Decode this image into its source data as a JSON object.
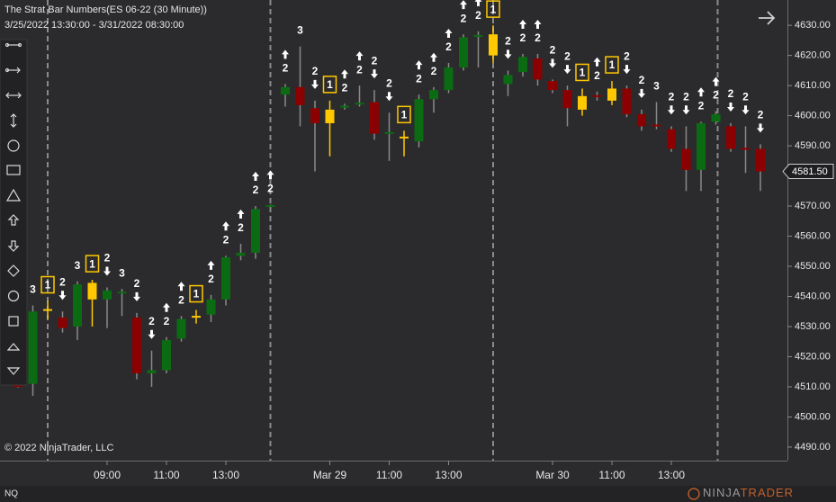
{
  "chart_data": {
    "type": "candlestick",
    "title": "The Strat Bar Numbers(ES 06-22 (30 Minute))",
    "subtitle": "3/25/2022 13:30:00 - 3/31/2022 08:30:00",
    "copyright": "© 2022 NinjaTrader, LLC",
    "instrument": "NQ",
    "brand": {
      "first": "NINJA",
      "second": "TRADER"
    },
    "categories": [
      null,
      null,
      null,
      null,
      null,
      null,
      "09:00",
      null,
      null,
      null,
      "11:00",
      null,
      null,
      null,
      "13:00",
      null,
      null,
      null,
      null,
      null,
      null,
      "Mar 29",
      null,
      null,
      null,
      "11:00",
      null,
      null,
      null,
      "13:00",
      null,
      null,
      null,
      null,
      null,
      null,
      "Mar 30",
      null,
      null,
      null,
      "11:00",
      null,
      null,
      null,
      "13:00",
      null,
      null,
      null,
      null,
      null,
      null
    ],
    "open": [
      4510.25,
      4511,
      4535,
      4533,
      4530,
      4539,
      4539,
      4541,
      4533,
      4514.5,
      4515.5,
      4526,
      4533,
      4534,
      4539,
      4553.5,
      4554.5,
      4569.5,
      4607,
      4609.5,
      4602.5,
      4597.5,
      4602.5,
      4603.5,
      4604.5,
      4594,
      4592.5,
      4591.5,
      4605.5,
      4608.5,
      4616,
      4626,
      4620,
      4610.5,
      4614.5,
      4619,
      4611.5,
      4608.5,
      4602,
      4606.5,
      4605,
      4609,
      4600.5,
      4596.75,
      4595.5,
      4589,
      4582,
      4598,
      4596.5,
      4589,
      4589
    ],
    "high": [
      4510.5,
      4537,
      4538.5,
      4535,
      4545,
      4545.5,
      4543,
      4542.5,
      4534.5,
      4522,
      4526.5,
      4533.5,
      4535.5,
      4540.5,
      4553.5,
      4557.5,
      4570,
      4570.5,
      4610.5,
      4623,
      4605,
      4605,
      4604,
      4610,
      4608.5,
      4601,
      4595,
      4607,
      4609.5,
      4617.5,
      4627,
      4628,
      4630,
      4615,
      4620.5,
      4620.5,
      4612,
      4610,
      4609,
      4608,
      4611.5,
      4610,
      4602,
      4604.5,
      4596.5,
      4596.5,
      4598,
      4601.5,
      4597.5,
      4596.5,
      4590.5
    ],
    "low": [
      4509.75,
      4507,
      4532.5,
      4528,
      4525.5,
      4530,
      4529.5,
      4533.5,
      4512.5,
      4510,
      4514.5,
      4525,
      4531,
      4531.5,
      4537,
      4552,
      4552.5,
      4569,
      4603,
      4596.5,
      4581.5,
      4586.5,
      4602,
      4603,
      4592,
      4585,
      4586.5,
      4589.5,
      4601,
      4607.5,
      4615,
      4616,
      4617.5,
      4606.5,
      4613,
      4610,
      4607.5,
      4596.5,
      4600,
      4605,
      4603.5,
      4599.5,
      4595,
      4595.5,
      4588,
      4575,
      4575,
      4597,
      4588,
      4581,
      4575
    ],
    "close": [
      4510,
      4535,
      4535.5,
      4529.5,
      4544,
      4544.5,
      4542,
      4541.25,
      4514.5,
      4515.5,
      4525.5,
      4532.5,
      4533.25,
      4539,
      4553,
      4554.5,
      4569,
      4570,
      4609.5,
      4603.5,
      4597.5,
      4602,
      4603,
      4604,
      4594,
      4594.25,
      4592.75,
      4605.5,
      4608.5,
      4616,
      4626,
      4626.5,
      4627,
      4613.5,
      4619.5,
      4612,
      4608.5,
      4602.5,
      4606.5,
      4606,
      4609,
      4600.5,
      4596.5,
      4596.5,
      4589,
      4582,
      4597.5,
      4600.5,
      4589,
      4588.75,
      4581.5
    ],
    "strat": [
      null,
      3,
      1,
      2,
      3,
      1,
      2,
      3,
      2,
      2,
      2,
      2,
      1,
      2,
      2,
      2,
      2,
      2,
      2,
      3,
      2,
      1,
      2,
      2,
      2,
      2,
      1,
      2,
      2,
      2,
      2,
      2,
      1,
      2,
      2,
      2,
      2,
      2,
      1,
      2,
      1,
      2,
      2,
      3,
      2,
      2,
      2,
      2,
      2,
      2,
      2
    ],
    "strat_direction": [
      null,
      null,
      null,
      "down",
      null,
      null,
      "down",
      null,
      "down",
      "down",
      "up",
      "up",
      null,
      "up",
      "up",
      "up",
      "up",
      "up",
      "up",
      null,
      "down",
      null,
      "up",
      "up",
      "down",
      "down",
      null,
      "up",
      "up",
      "up",
      "up",
      "up",
      null,
      "down",
      "up",
      "up",
      "down",
      "down",
      null,
      "up",
      null,
      "down",
      "down",
      null,
      "down",
      "down",
      "up",
      "up",
      "down",
      "down",
      "down"
    ],
    "inside_bar": 1,
    "up_color": "#0b6b12",
    "down_color": "#8b0000",
    "inside_color": "#ffc800",
    "wick_color": "#8a8a8a",
    "ylim": [
      4485.5,
      4638.4
    ],
    "yticks": [
      {
        "value": 4490,
        "label": "4490.00"
      },
      {
        "value": 4500,
        "label": "4500.00"
      },
      {
        "value": 4510,
        "label": "4510.00"
      },
      {
        "value": 4520,
        "label": "4520.00"
      },
      {
        "value": 4530,
        "label": "4530.00"
      },
      {
        "value": 4540,
        "label": "4540.00"
      },
      {
        "value": 4550,
        "label": "4550.00"
      },
      {
        "value": 4560,
        "label": "4560.00"
      },
      {
        "value": 4570,
        "label": "4570.00"
      },
      {
        "value": 4580,
        "label": "4580.00"
      },
      {
        "value": 4590,
        "label": "4590.00"
      },
      {
        "value": 4600,
        "label": "4600.00"
      },
      {
        "value": 4610,
        "label": "4610.00"
      },
      {
        "value": 4620,
        "label": "4620.00"
      },
      {
        "value": 4630,
        "label": "4630.00"
      }
    ],
    "last_price": {
      "value": 4581.5,
      "label": "4581.50"
    }
  }
}
